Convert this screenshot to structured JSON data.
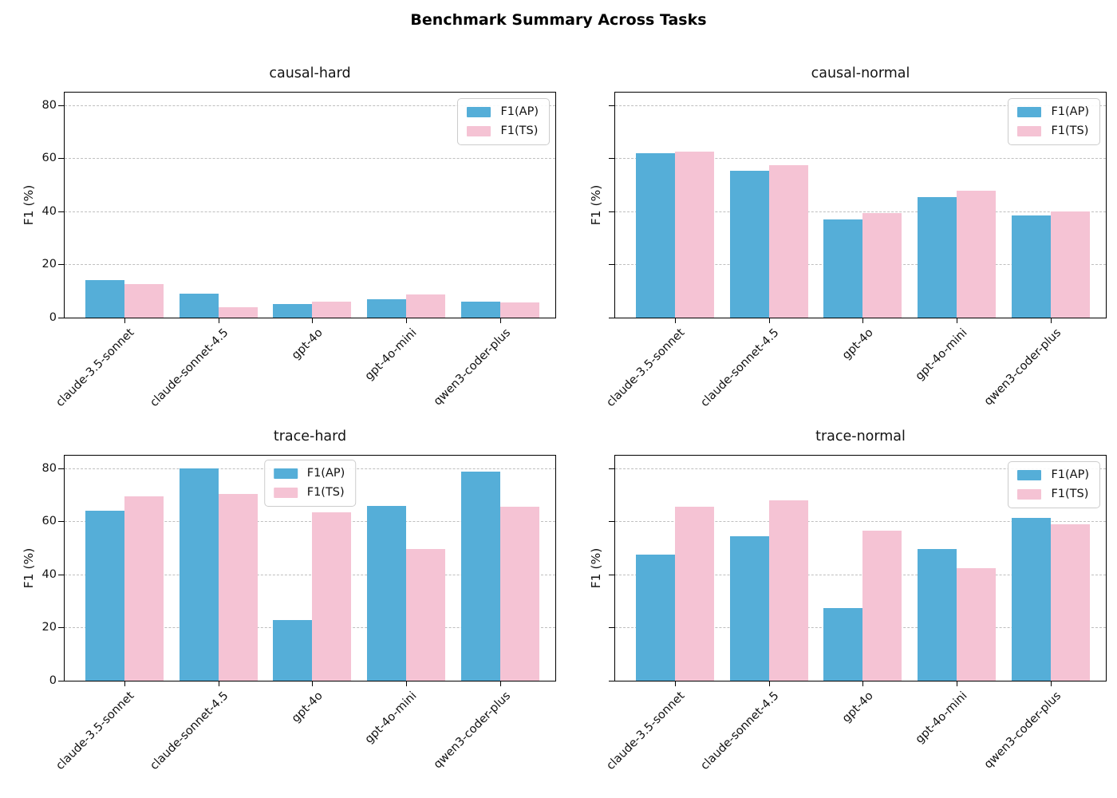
{
  "title": "Benchmark Summary Across Tasks",
  "ylabel": "F1 (%)",
  "categories": [
    "claude-3.5-sonnet",
    "claude-sonnet-4.5",
    "gpt-4o",
    "gpt-4o-mini",
    "qwen3-coder-plus"
  ],
  "legend": {
    "labels": [
      "F1(AP)",
      "F1(TS)"
    ]
  },
  "colors": {
    "f1_ap": "#55aed8",
    "f1_ts": "#f5c3d4",
    "grid": "#bfbfbf",
    "spine": "#000000",
    "legend_border": "#cccccc",
    "text": "#111111"
  },
  "chart_data": [
    {
      "type": "bar",
      "title": "causal-hard",
      "categories": [
        "claude-3.5-sonnet",
        "claude-sonnet-4.5",
        "gpt-4o",
        "gpt-4o-mini",
        "qwen3-coder-plus"
      ],
      "series": [
        {
          "name": "F1(AP)",
          "values": [
            14.0,
            9.0,
            5.2,
            6.9,
            6.1
          ]
        },
        {
          "name": "F1(TS)",
          "values": [
            12.6,
            3.8,
            6.1,
            8.7,
            5.6
          ]
        }
      ],
      "ylabel": "F1 (%)",
      "yticks": [
        0,
        20,
        40,
        60,
        80
      ],
      "ylim": [
        0,
        84.7
      ],
      "grid": "horizontal-dashed",
      "show_ytick_labels": true,
      "legend_position": "upper right"
    },
    {
      "type": "bar",
      "title": "causal-normal",
      "categories": [
        "claude-3.5-sonnet",
        "claude-sonnet-4.5",
        "gpt-4o",
        "gpt-4o-mini",
        "qwen3-coder-plus"
      ],
      "series": [
        {
          "name": "F1(AP)",
          "values": [
            62.0,
            55.4,
            37.0,
            45.3,
            38.4
          ]
        },
        {
          "name": "F1(TS)",
          "values": [
            62.4,
            57.5,
            39.3,
            47.7,
            40.0
          ]
        }
      ],
      "ylabel": "F1 (%)",
      "yticks": [
        0,
        20,
        40,
        60,
        80
      ],
      "ylim": [
        0,
        84.7
      ],
      "grid": "horizontal-dashed",
      "show_ytick_labels": false,
      "legend_position": "upper right"
    },
    {
      "type": "bar",
      "title": "trace-hard",
      "categories": [
        "claude-3.5-sonnet",
        "claude-sonnet-4.5",
        "gpt-4o",
        "gpt-4o-mini",
        "qwen3-coder-plus"
      ],
      "series": [
        {
          "name": "F1(AP)",
          "values": [
            63.9,
            80.0,
            22.7,
            65.9,
            78.8
          ]
        },
        {
          "name": "F1(TS)",
          "values": [
            69.5,
            70.2,
            63.3,
            49.5,
            65.5
          ]
        }
      ],
      "ylabel": "F1 (%)",
      "yticks": [
        0,
        20,
        40,
        60,
        80
      ],
      "ylim": [
        0,
        84.7
      ],
      "grid": "horizontal-dashed",
      "show_ytick_labels": true,
      "legend_position": "upper center"
    },
    {
      "type": "bar",
      "title": "trace-normal",
      "categories": [
        "claude-3.5-sonnet",
        "claude-sonnet-4.5",
        "gpt-4o",
        "gpt-4o-mini",
        "qwen3-coder-plus"
      ],
      "series": [
        {
          "name": "F1(AP)",
          "values": [
            47.4,
            54.4,
            27.2,
            49.5,
            61.3
          ]
        },
        {
          "name": "F1(TS)",
          "values": [
            65.5,
            67.8,
            56.5,
            42.3,
            59.0
          ]
        }
      ],
      "ylabel": "F1 (%)",
      "yticks": [
        0,
        20,
        40,
        60,
        80
      ],
      "ylim": [
        0,
        84.7
      ],
      "grid": "horizontal-dashed",
      "show_ytick_labels": false,
      "legend_position": "upper right"
    }
  ]
}
